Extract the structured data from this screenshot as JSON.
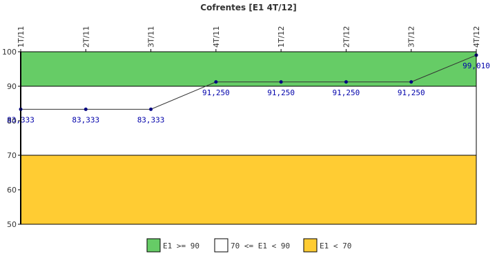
{
  "chart_data": {
    "type": "line",
    "title": "Cofrentes [E1 4T/12]",
    "categories": [
      "1T/11",
      "2T/11",
      "3T/11",
      "4T/11",
      "1T/12",
      "2T/12",
      "3T/12",
      "4T/12"
    ],
    "series": [
      {
        "values": [
          83.333,
          83.333,
          83.333,
          91.25,
          91.25,
          91.25,
          91.25,
          99.01
        ],
        "labels": [
          "83,333",
          "83,333",
          "83,333",
          "91,250",
          "91,250",
          "91,250",
          "91,250",
          "99,010"
        ],
        "color": "#000080"
      }
    ],
    "ylim": [
      50,
      100
    ],
    "yticks": [
      50,
      60,
      70,
      80,
      90,
      100
    ],
    "bands": [
      {
        "from": 90,
        "to": 100,
        "color": "#66cc66",
        "label": "E1 >= 90"
      },
      {
        "from": 70,
        "to": 90,
        "color": "#ffffff",
        "label": "70 <= E1 < 90"
      },
      {
        "from": 50,
        "to": 70,
        "color": "#ffcc33",
        "label": "E1 < 70"
      }
    ],
    "legend_position": "bottom",
    "grid": false
  }
}
